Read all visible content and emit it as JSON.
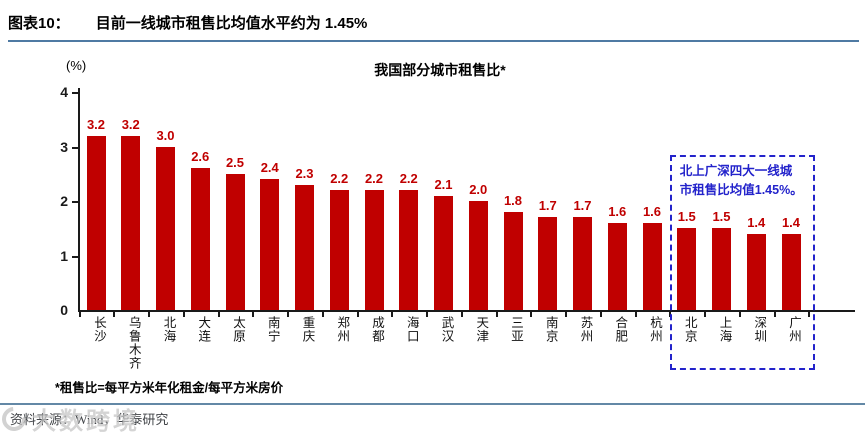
{
  "header": {
    "figure_label": "图表10：",
    "title": "目前一线城市租售比均值水平约为 1.45%"
  },
  "chart_data": {
    "type": "bar",
    "title": "我国部分城市租售比*",
    "unit_label": "(%)",
    "categories": [
      "长沙",
      "乌鲁木齐",
      "北海",
      "大连",
      "太原",
      "南宁",
      "重庆",
      "郑州",
      "成都",
      "海口",
      "武汉",
      "天津",
      "三亚",
      "南京",
      "苏州",
      "合肥",
      "杭州",
      "北京",
      "上海",
      "深圳",
      "广州"
    ],
    "values": [
      3.2,
      3.2,
      3.0,
      2.6,
      2.5,
      2.4,
      2.3,
      2.2,
      2.2,
      2.2,
      2.1,
      2.0,
      1.8,
      1.7,
      1.7,
      1.6,
      1.6,
      1.5,
      1.5,
      1.4,
      1.4
    ],
    "value_labels": [
      "3.2",
      "3.2",
      "3.0",
      "2.6",
      "2.5",
      "2.4",
      "2.3",
      "2.2",
      "2.2",
      "2.2",
      "2.1",
      "2.0",
      "1.8",
      "1.7",
      "1.7",
      "1.6",
      "1.6",
      "1.5",
      "1.5",
      "1.4",
      "1.4"
    ],
    "ylim": [
      0,
      4
    ],
    "yticks": [
      "0",
      "1",
      "2",
      "3",
      "4"
    ],
    "grid": false,
    "legend": null,
    "bar_color": "#C00000",
    "value_label_color": "#C00000",
    "annotation": {
      "text": "北上广深四大一线城市租售比均值1.45%。",
      "applies_to": [
        "北京",
        "上海",
        "深圳",
        "广州"
      ],
      "border_color": "#2323CB",
      "text_color": "#2323CB"
    }
  },
  "footnote": "*租售比=每平方米年化租金/每平方米房价",
  "source": {
    "text": "资料来源：Wind，华泰研究",
    "watermark": "大数跨境"
  },
  "colors": {
    "bar_red": "#C00000",
    "annotation_blue": "#2323CB",
    "header_rule_blue": "#4f7aa3",
    "footer_rule_blue": "#6388a6",
    "axis_black": "#1a1a1a"
  }
}
